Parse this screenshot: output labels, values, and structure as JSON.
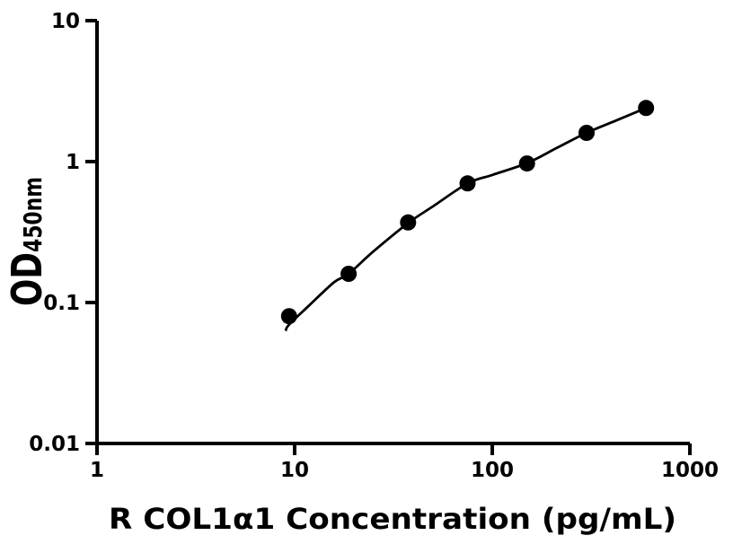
{
  "figure": {
    "background": "#ffffff",
    "foreground": "#000000"
  },
  "chart_data": {
    "type": "scatter",
    "title": "",
    "xlabel": "R COL1α1 Concentration (pg/mL)",
    "ylabel_main": "OD",
    "ylabel_sub": "450nm",
    "x_scale": "log",
    "y_scale": "log",
    "xlim": [
      1,
      1000
    ],
    "ylim": [
      0.01,
      10
    ],
    "grid": false,
    "legend": "none",
    "marker": "filled-circle",
    "color": "#000000",
    "x_ticks": [
      {
        "value": 1,
        "label": "1"
      },
      {
        "value": 10,
        "label": "10"
      },
      {
        "value": 100,
        "label": "100"
      },
      {
        "value": 1000,
        "label": "1000"
      }
    ],
    "y_ticks": [
      {
        "value": 0.01,
        "label": "0.01"
      },
      {
        "value": 0.1,
        "label": "0.1"
      },
      {
        "value": 1,
        "label": "1"
      },
      {
        "value": 10,
        "label": "10"
      }
    ],
    "points": [
      {
        "x": 9.375,
        "y": 0.08
      },
      {
        "x": 18.75,
        "y": 0.16
      },
      {
        "x": 37.5,
        "y": 0.37
      },
      {
        "x": 75,
        "y": 0.7
      },
      {
        "x": 150,
        "y": 0.97
      },
      {
        "x": 300,
        "y": 1.6
      },
      {
        "x": 600,
        "y": 2.4
      }
    ],
    "fit_curve": [
      {
        "x": 9.0,
        "y": 0.063
      },
      {
        "x": 9.4,
        "y": 0.07
      },
      {
        "x": 11.9,
        "y": 0.096
      },
      {
        "x": 15.8,
        "y": 0.139
      },
      {
        "x": 18.75,
        "y": 0.16
      },
      {
        "x": 25,
        "y": 0.23
      },
      {
        "x": 37.5,
        "y": 0.366
      },
      {
        "x": 50,
        "y": 0.48
      },
      {
        "x": 75,
        "y": 0.7
      },
      {
        "x": 100,
        "y": 0.804
      },
      {
        "x": 150,
        "y": 0.975
      },
      {
        "x": 212,
        "y": 1.249
      },
      {
        "x": 300,
        "y": 1.6
      },
      {
        "x": 424,
        "y": 1.958
      },
      {
        "x": 600,
        "y": 2.4
      }
    ]
  }
}
